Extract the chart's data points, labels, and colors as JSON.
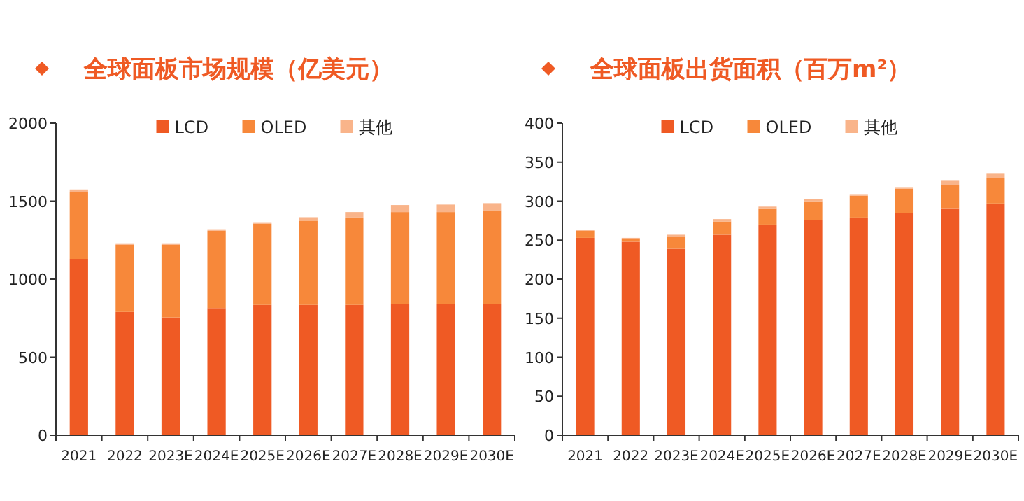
{
  "chart_data": [
    {
      "type": "bar",
      "title": "全球面板市场规模（亿美元）",
      "stacked": true,
      "legend": "top",
      "grid": false,
      "categories": [
        "2021",
        "2022",
        "2023E",
        "2024E",
        "2025E",
        "2026E",
        "2027E",
        "2028E",
        "2029E",
        "2030E"
      ],
      "series": [
        {
          "name": "LCD",
          "color": "#ef5a24",
          "values": [
            1130,
            790,
            755,
            815,
            835,
            835,
            835,
            840,
            840,
            842
          ]
        },
        {
          "name": "OLED",
          "color": "#f7883a",
          "values": [
            430,
            430,
            465,
            495,
            520,
            540,
            560,
            590,
            590,
            600
          ]
        },
        {
          "name": "其他",
          "color": "#f9b48a",
          "values": [
            15,
            10,
            10,
            10,
            10,
            22,
            35,
            45,
            48,
            45
          ]
        }
      ],
      "ylim": [
        0,
        2000
      ],
      "yticks": [
        0,
        500,
        1000,
        1500,
        2000
      ]
    },
    {
      "type": "bar",
      "title": "全球面板出货面积（百万m²）",
      "stacked": true,
      "legend": "top",
      "grid": false,
      "categories": [
        "2021",
        "2022",
        "2023E",
        "2024E",
        "2025E",
        "2026E",
        "2027E",
        "2028E",
        "2029E",
        "2030E"
      ],
      "series": [
        {
          "name": "LCD",
          "color": "#ef5a24",
          "values": [
            253,
            248,
            239,
            257,
            270,
            276,
            279,
            285,
            291,
            297
          ]
        },
        {
          "name": "OLED",
          "color": "#f7883a",
          "values": [
            9,
            4,
            15,
            17,
            21,
            24,
            28,
            31,
            30,
            33
          ]
        },
        {
          "name": "其他",
          "color": "#f9b48a",
          "values": [
            1,
            1,
            3,
            3,
            2,
            3,
            2,
            2,
            6,
            6
          ]
        }
      ],
      "ylim": [
        0,
        400
      ],
      "yticks": [
        0,
        50,
        100,
        150,
        200,
        250,
        300,
        350,
        400
      ]
    }
  ]
}
